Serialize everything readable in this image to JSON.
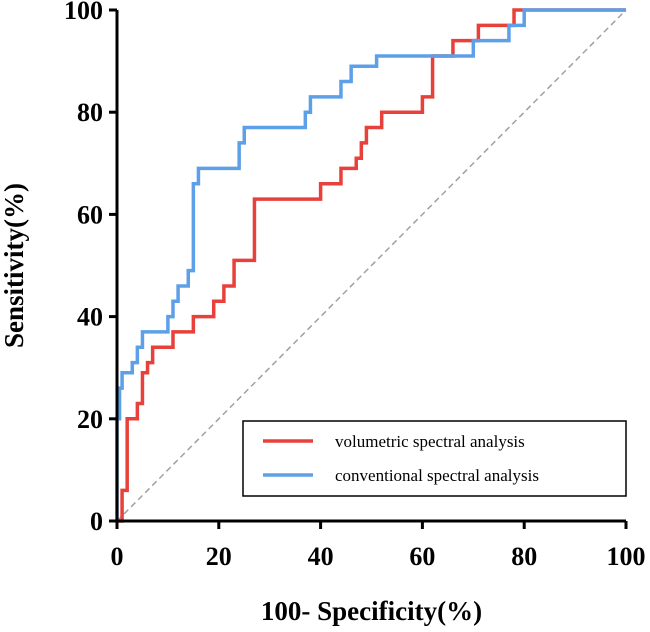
{
  "chart_data": {
    "type": "line",
    "xlabel": "100- Specificity(%)",
    "ylabel": "Sensitivity(%)",
    "xlim": [
      0,
      100
    ],
    "ylim": [
      0,
      100
    ],
    "xticks": [
      "0",
      "20",
      "40",
      "60",
      "80",
      "100"
    ],
    "yticks": [
      "0",
      "20",
      "40",
      "60",
      "80",
      "100"
    ],
    "legend_position": "bottom-right",
    "reference_line": {
      "style": "dashed",
      "color": "#a0a0a0",
      "points": [
        [
          0,
          0
        ],
        [
          100,
          100
        ]
      ]
    },
    "series": [
      {
        "name": "volumetric spectral analysis",
        "color": "#e8413c",
        "points": [
          [
            0,
            0
          ],
          [
            0.5,
            0
          ],
          [
            1,
            0
          ],
          [
            1,
            6
          ],
          [
            2,
            6
          ],
          [
            2,
            20
          ],
          [
            4,
            20
          ],
          [
            4,
            23
          ],
          [
            5,
            23
          ],
          [
            5,
            29
          ],
          [
            6,
            29
          ],
          [
            6,
            31
          ],
          [
            7,
            31
          ],
          [
            7,
            34
          ],
          [
            11,
            34
          ],
          [
            11,
            37
          ],
          [
            15,
            37
          ],
          [
            15,
            40
          ],
          [
            19,
            40
          ],
          [
            19,
            43
          ],
          [
            21,
            43
          ],
          [
            21,
            46
          ],
          [
            23,
            46
          ],
          [
            23,
            51
          ],
          [
            26,
            51
          ],
          [
            26,
            51
          ],
          [
            27,
            51
          ],
          [
            27,
            63
          ],
          [
            40,
            63
          ],
          [
            40,
            66
          ],
          [
            44,
            66
          ],
          [
            44,
            69
          ],
          [
            47,
            69
          ],
          [
            47,
            71
          ],
          [
            48,
            71
          ],
          [
            48,
            74
          ],
          [
            49,
            74
          ],
          [
            49,
            77
          ],
          [
            52,
            77
          ],
          [
            52,
            80
          ],
          [
            60,
            80
          ],
          [
            60,
            83
          ],
          [
            62,
            83
          ],
          [
            62,
            91
          ],
          [
            66,
            91
          ],
          [
            66,
            94
          ],
          [
            71,
            94
          ],
          [
            71,
            97
          ],
          [
            78,
            97
          ],
          [
            78,
            100
          ],
          [
            100,
            100
          ]
        ]
      },
      {
        "name": "conventional spectral analysis",
        "color": "#5da0e8",
        "points": [
          [
            0,
            0
          ],
          [
            0,
            20
          ],
          [
            0.5,
            20
          ],
          [
            0.5,
            26
          ],
          [
            1,
            26
          ],
          [
            1,
            29
          ],
          [
            3,
            29
          ],
          [
            3,
            31
          ],
          [
            4,
            31
          ],
          [
            4,
            34
          ],
          [
            5,
            34
          ],
          [
            5,
            37
          ],
          [
            10,
            37
          ],
          [
            10,
            40
          ],
          [
            11,
            40
          ],
          [
            11,
            43
          ],
          [
            12,
            43
          ],
          [
            12,
            46
          ],
          [
            14,
            46
          ],
          [
            14,
            49
          ],
          [
            15,
            49
          ],
          [
            15,
            66
          ],
          [
            16,
            66
          ],
          [
            16,
            69
          ],
          [
            24,
            69
          ],
          [
            24,
            74
          ],
          [
            25,
            74
          ],
          [
            25,
            77
          ],
          [
            37,
            77
          ],
          [
            37,
            80
          ],
          [
            38,
            80
          ],
          [
            38,
            83
          ],
          [
            44,
            83
          ],
          [
            44,
            86
          ],
          [
            46,
            86
          ],
          [
            46,
            89
          ],
          [
            48,
            89
          ],
          [
            48,
            89
          ],
          [
            51,
            89
          ],
          [
            51,
            91
          ],
          [
            70,
            91
          ],
          [
            70,
            94
          ],
          [
            77,
            94
          ],
          [
            77,
            97
          ],
          [
            80,
            97
          ],
          [
            80,
            100
          ],
          [
            100,
            100
          ]
        ]
      }
    ]
  }
}
